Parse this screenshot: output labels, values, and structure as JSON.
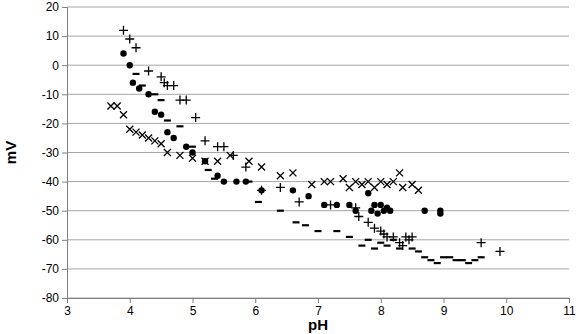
{
  "chart_data": {
    "type": "scatter",
    "x_label": "pH",
    "y_label": "mV",
    "xlim": [
      3,
      11
    ],
    "xticks": [
      3,
      4,
      5,
      6,
      7,
      8,
      9,
      10,
      11
    ],
    "ylim": [
      -80,
      20
    ],
    "yticks": [
      -80,
      -70,
      -60,
      -50,
      -40,
      -30,
      -20,
      -10,
      0,
      10,
      20
    ],
    "grid": true,
    "series": [
      {
        "marker": "plus",
        "color": "#000000",
        "x": [
          3.9,
          4.0,
          4.1,
          4.3,
          4.5,
          4.55,
          4.6,
          4.7,
          4.8,
          4.9,
          5.05,
          5.2,
          5.4,
          5.5,
          5.65,
          5.85,
          6.1,
          6.4,
          6.7,
          7.2,
          7.6,
          7.65,
          7.8,
          7.9,
          8.0,
          8.05,
          8.1,
          8.2,
          8.3,
          8.35,
          8.4,
          8.45,
          8.5,
          9.6,
          9.9
        ],
        "values": [
          12,
          9,
          6,
          -2,
          -4,
          -6,
          -7,
          -7,
          -12,
          -12,
          -18,
          -26,
          -28,
          -28,
          -31,
          -35,
          -43,
          -42,
          -47,
          -48,
          -49,
          -52,
          -54,
          -56,
          -57,
          -58,
          -59,
          -59,
          -61,
          -62,
          -59,
          -60,
          -59,
          -61,
          -64
        ]
      },
      {
        "marker": "circle",
        "color": "#000000",
        "x": [
          3.9,
          4.0,
          4.05,
          4.15,
          4.3,
          4.4,
          4.5,
          4.6,
          4.7,
          4.9,
          5.0,
          5.2,
          5.4,
          5.5,
          5.7,
          5.85,
          6.1,
          6.6,
          6.85,
          7.1,
          7.3,
          7.5,
          7.6,
          7.8,
          7.85,
          7.9,
          7.95,
          8.0,
          8.05,
          8.1,
          8.15,
          8.7,
          8.95,
          8.95
        ],
        "values": [
          4,
          0,
          -6,
          -8,
          -10,
          -16,
          -17,
          -23,
          -25,
          -28,
          -30,
          -33,
          -38,
          -40,
          -40,
          -40,
          -43,
          -43,
          -45,
          -48,
          -48,
          -48,
          -50,
          -44,
          -50,
          -48,
          -51,
          -48,
          -50,
          -49,
          -50,
          -50,
          -50,
          -51
        ]
      },
      {
        "marker": "dash",
        "color": "#000000",
        "x": [
          4.1,
          4.2,
          4.4,
          4.5,
          4.6,
          4.8,
          5.0,
          5.25,
          5.35,
          5.9,
          6.05,
          6.4,
          6.65,
          6.8,
          7.0,
          7.3,
          7.5,
          7.7,
          7.8,
          7.9,
          8.0,
          8.1,
          8.2,
          8.3,
          8.5,
          8.6,
          8.7,
          8.8,
          8.9,
          9.0,
          9.1,
          9.2,
          9.3,
          9.4,
          9.5,
          9.6
        ],
        "values": [
          -3,
          -7,
          -10,
          -12,
          -19,
          -21,
          -28,
          -36,
          -39,
          -40,
          -47,
          -50,
          -54,
          -55,
          -57,
          -57,
          -59,
          -62,
          -60,
          -63,
          -61,
          -62,
          -60,
          -63,
          -63,
          -64,
          -66,
          -67,
          -68,
          -66,
          -66,
          -67,
          -67,
          -68,
          -67,
          -66
        ]
      },
      {
        "marker": "cross",
        "color": "#000000",
        "x": [
          3.7,
          3.8,
          3.9,
          4.0,
          4.1,
          4.2,
          4.3,
          4.4,
          4.5,
          4.6,
          4.8,
          5.0,
          5.2,
          5.4,
          5.6,
          5.9,
          6.1,
          6.4,
          6.6,
          6.9,
          7.1,
          7.2,
          7.4,
          7.5,
          7.6,
          7.7,
          7.8,
          7.9,
          8.0,
          8.1,
          8.2,
          8.3,
          8.35,
          8.5,
          8.6
        ],
        "values": [
          -14,
          -14,
          -17,
          -22,
          -23,
          -24,
          -25,
          -26,
          -27,
          -30,
          -31,
          -32,
          -33,
          -33,
          -31,
          -33,
          -35,
          -38,
          -37,
          -41,
          -40,
          -40,
          -39,
          -42,
          -40,
          -41,
          -40,
          -42,
          -40,
          -41,
          -40,
          -37,
          -42,
          -41,
          -43
        ]
      }
    ]
  }
}
